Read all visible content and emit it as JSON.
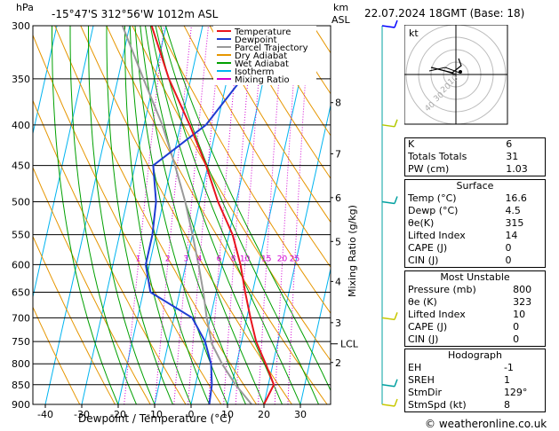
{
  "header": {
    "hpa_label": "hPa",
    "location": "-15°47'S  312°56'W  1012m  ASL",
    "km_label": "km",
    "asl_label": "ASL",
    "datetime": "22.07.2024  18GMT  (Base: 18)"
  },
  "chart_data": {
    "type": "line",
    "title": "",
    "xlabel": "Dewpoint / Temperature (°C)",
    "ylabel": "hPa",
    "y2label": "Mixing Ratio (g/kg)",
    "xlim": [
      -40,
      35
    ],
    "ylim": [
      900,
      300
    ],
    "y_scale": "log",
    "x_ticks": [
      -40,
      -30,
      -20,
      -10,
      0,
      10,
      20,
      30
    ],
    "y_ticks": [
      300,
      350,
      400,
      450,
      500,
      550,
      600,
      650,
      700,
      750,
      800,
      850,
      900
    ],
    "km_ticks": [
      {
        "label": "8",
        "p": 375
      },
      {
        "label": "7",
        "p": 435
      },
      {
        "label": "6",
        "p": 494
      },
      {
        "label": "5",
        "p": 561
      },
      {
        "label": "4",
        "p": 630
      },
      {
        "label": "3",
        "p": 710
      },
      {
        "label": "2",
        "p": 797
      }
    ],
    "lcl": {
      "label": "LCL",
      "p": 755
    },
    "mixing_ratio_labels": [
      "1",
      "2",
      "3",
      "4",
      "6",
      "8",
      "10",
      "15",
      "20",
      "25"
    ],
    "mixing_ratio_values": [
      1,
      2,
      3,
      4,
      6,
      8,
      10,
      15,
      20,
      25
    ],
    "legend": {
      "position": "top-left",
      "items": [
        {
          "label": "Temperature",
          "color": "#e8141e"
        },
        {
          "label": "Dewpoint",
          "color": "#1e3cd2"
        },
        {
          "label": "Parcel Trajectory",
          "color": "#999999"
        },
        {
          "label": "Dry Adiabat",
          "color": "#e69600"
        },
        {
          "label": "Wet Adiabat",
          "color": "#00a000"
        },
        {
          "label": "Isotherm",
          "color": "#00b4f0"
        },
        {
          "label": "Mixing Ratio",
          "color": "#d200d2"
        }
      ]
    },
    "series": [
      {
        "name": "Temperature",
        "color": "#e8141e",
        "points": [
          [
            900,
            20
          ],
          [
            850,
            21.5
          ],
          [
            800,
            18
          ],
          [
            750,
            14
          ],
          [
            700,
            11
          ],
          [
            650,
            8
          ],
          [
            600,
            5
          ],
          [
            550,
            1
          ],
          [
            500,
            -5
          ],
          [
            450,
            -10.5
          ],
          [
            400,
            -17.5
          ],
          [
            350,
            -26
          ],
          [
            300,
            -34
          ]
        ]
      },
      {
        "name": "Dewpoint",
        "color": "#1e3cd2",
        "points": [
          [
            900,
            5
          ],
          [
            850,
            4.5
          ],
          [
            800,
            3
          ],
          [
            750,
            0
          ],
          [
            700,
            -5
          ],
          [
            650,
            -18
          ],
          [
            600,
            -21
          ],
          [
            550,
            -21
          ],
          [
            500,
            -22
          ],
          [
            450,
            -25
          ],
          [
            400,
            -13
          ],
          [
            350,
            -6
          ],
          [
            300,
            0
          ]
        ]
      },
      {
        "name": "Parcel Trajectory",
        "color": "#999999",
        "points": [
          [
            900,
            16.6
          ],
          [
            850,
            11
          ],
          [
            800,
            6
          ],
          [
            755,
            2
          ],
          [
            700,
            -1
          ],
          [
            650,
            -3.5
          ],
          [
            600,
            -6.5
          ],
          [
            550,
            -10
          ],
          [
            500,
            -14
          ],
          [
            450,
            -19
          ],
          [
            400,
            -25
          ],
          [
            350,
            -33
          ],
          [
            300,
            -42
          ]
        ]
      }
    ]
  },
  "hodograph": {
    "label": "kt",
    "ring_labels": [
      "10",
      "20",
      "30",
      "40"
    ],
    "color": "#000000"
  },
  "indices": {
    "top": [
      {
        "label": "K",
        "value": "6"
      },
      {
        "label": "Totals Totals",
        "value": "31"
      },
      {
        "label": "PW (cm)",
        "value": "1.03"
      }
    ],
    "surface": {
      "title": "Surface",
      "rows": [
        {
          "label": "Temp (°C)",
          "value": "16.6"
        },
        {
          "label": "Dewp (°C)",
          "value": "4.5"
        },
        {
          "label": "θe(K)",
          "value": "315"
        },
        {
          "label": "Lifted Index",
          "value": "14"
        },
        {
          "label": "CAPE (J)",
          "value": "0"
        },
        {
          "label": "CIN (J)",
          "value": "0"
        }
      ]
    },
    "most_unstable": {
      "title": "Most Unstable",
      "rows": [
        {
          "label": "Pressure (mb)",
          "value": "800"
        },
        {
          "label": "θe (K)",
          "value": "323"
        },
        {
          "label": "Lifted Index",
          "value": "10"
        },
        {
          "label": "CAPE (J)",
          "value": "0"
        },
        {
          "label": "CIN (J)",
          "value": "0"
        }
      ]
    },
    "hodograph": {
      "title": "Hodograph",
      "rows": [
        {
          "label": "EH",
          "value": "-1"
        },
        {
          "label": "SREH",
          "value": "1"
        },
        {
          "label": "StmDir",
          "value": "129°"
        },
        {
          "label": "StmSpd (kt)",
          "value": "8"
        }
      ]
    }
  },
  "copyright": "© weatheronline.co.uk"
}
